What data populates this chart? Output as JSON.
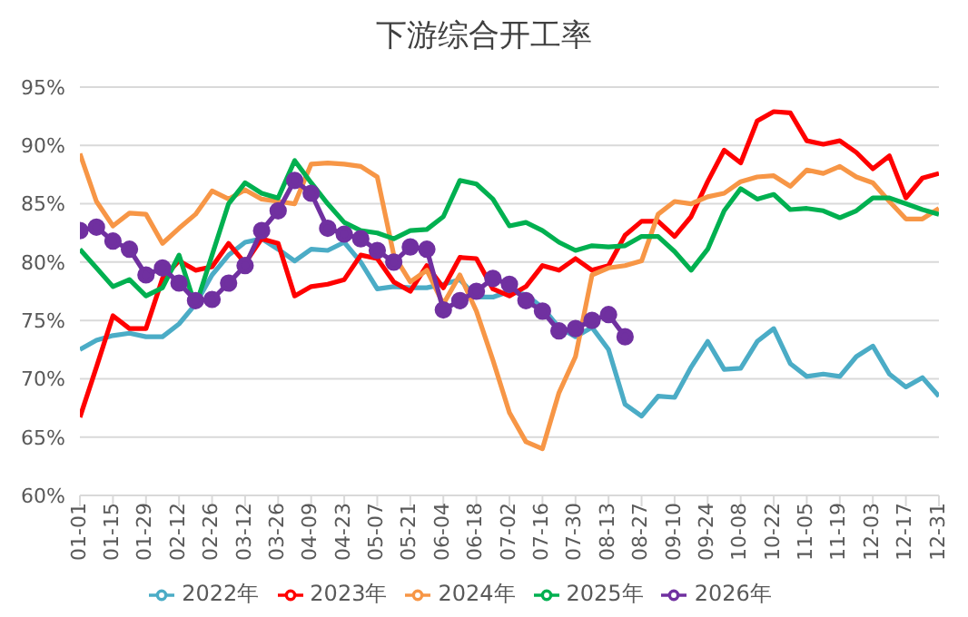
{
  "chart_data": {
    "type": "line",
    "title": "下游综合开工率",
    "x": [
      "--01-01",
      "--01-08",
      "--01-15",
      "--01-22",
      "--01-29",
      "--02-05",
      "--02-12",
      "--02-19",
      "--02-26",
      "--03-05",
      "--03-12",
      "--03-19",
      "--03-26",
      "--04-02",
      "--04-09",
      "--04-16",
      "--04-23",
      "--04-30",
      "--05-07",
      "--05-14",
      "--05-21",
      "--05-28",
      "--06-04",
      "--06-11",
      "--06-18",
      "--06-25",
      "--07-02",
      "--07-09",
      "--07-16",
      "--07-23",
      "--07-30",
      "--08-06",
      "--08-13",
      "--08-20",
      "--08-27",
      "--09-03",
      "--09-10",
      "--09-17",
      "--09-24",
      "--10-01",
      "--10-08",
      "--10-15",
      "--10-22",
      "--10-29",
      "--11-05",
      "--11-12",
      "--11-19",
      "--11-26",
      "--12-03",
      "--12-10",
      "--12-17",
      "--12-24",
      "--12-31"
    ],
    "series": [
      {
        "name": "2022年",
        "color": "#4bacc6",
        "marker": "none",
        "values": [
          72.5,
          73.3,
          73.7,
          73.9,
          73.6,
          73.6,
          74.7,
          76.4,
          78.9,
          80.6,
          81.7,
          82.0,
          81.1,
          80.1,
          81.1,
          81.0,
          81.7,
          80.0,
          77.7,
          77.9,
          77.8,
          77.8,
          78.1,
          78.5,
          77.0,
          77.0,
          77.5,
          77.2,
          76.1,
          74.4,
          73.6,
          74.4,
          72.5,
          67.8,
          66.8,
          68.5,
          68.4,
          71.0,
          73.2,
          70.8,
          70.9,
          73.2,
          74.3,
          71.3,
          70.2,
          70.4,
          70.2,
          71.9,
          72.8,
          70.4,
          69.3,
          70.1,
          68.5
        ]
      },
      {
        "name": "2023年",
        "color": "#ff0000",
        "marker": "none",
        "values": [
          66.7,
          71.0,
          75.4,
          74.3,
          74.3,
          78.6,
          80.1,
          79.3,
          79.6,
          81.6,
          79.9,
          82.0,
          81.6,
          77.1,
          77.9,
          78.1,
          78.5,
          80.6,
          80.3,
          78.3,
          77.5,
          79.7,
          77.8,
          80.4,
          80.3,
          77.7,
          77.1,
          77.9,
          79.7,
          79.3,
          80.3,
          79.3,
          79.7,
          82.3,
          83.5,
          83.5,
          82.2,
          83.9,
          86.9,
          89.6,
          88.5,
          92.1,
          92.9,
          92.8,
          90.4,
          90.1,
          90.4,
          89.4,
          88.0,
          89.1,
          85.5,
          87.2,
          87.6
        ]
      },
      {
        "name": "2024年",
        "color": "#f79646",
        "marker": "none",
        "values": [
          89.3,
          85.2,
          83.1,
          84.2,
          84.1,
          81.6,
          82.9,
          84.1,
          86.1,
          85.4,
          86.2,
          85.4,
          85.2,
          85.0,
          88.4,
          88.5,
          88.4,
          88.2,
          87.3,
          80.6,
          78.3,
          79.3,
          76.4,
          78.9,
          75.8,
          71.6,
          67.1,
          64.6,
          64.0,
          68.8,
          71.9,
          78.9,
          79.5,
          79.7,
          80.1,
          84.1,
          85.2,
          85.0,
          85.6,
          85.9,
          86.9,
          87.3,
          87.4,
          86.5,
          87.9,
          87.6,
          88.2,
          87.3,
          86.8,
          85.2,
          83.7,
          83.7,
          84.6
        ]
      },
      {
        "name": "2025年",
        "color": "#00b050",
        "marker": "none",
        "values": [
          81.1,
          79.5,
          77.9,
          78.5,
          77.1,
          77.8,
          80.6,
          76.2,
          80.6,
          85.0,
          86.8,
          85.9,
          85.5,
          88.7,
          86.8,
          85.0,
          83.4,
          82.7,
          82.5,
          82.0,
          82.7,
          82.8,
          83.9,
          87.0,
          86.7,
          85.4,
          83.1,
          83.4,
          82.7,
          81.7,
          81.0,
          81.4,
          81.3,
          81.4,
          82.2,
          82.2,
          80.9,
          79.3,
          81.1,
          84.4,
          86.3,
          85.4,
          85.8,
          84.5,
          84.6,
          84.4,
          83.8,
          84.4,
          85.5,
          85.5,
          85.0,
          84.5,
          84.1
        ]
      },
      {
        "name": "2026年",
        "color": "#7030a0",
        "marker": "circle",
        "values": [
          82.7,
          83.0,
          81.8,
          81.1,
          78.9,
          79.5,
          78.2,
          76.7,
          76.8,
          78.2,
          79.7,
          82.7,
          84.4,
          87.0,
          85.9,
          82.9,
          82.4,
          82.0,
          81.0,
          80.0,
          81.3,
          81.1,
          75.9,
          76.7,
          77.5,
          78.6,
          78.1,
          76.7,
          75.8,
          74.1,
          74.3,
          75.0,
          75.5,
          73.6,
          null,
          null,
          null,
          null,
          null,
          null,
          null,
          null,
          null,
          null,
          null,
          null,
          null,
          null,
          null,
          null,
          null,
          null,
          null
        ]
      }
    ],
    "xlim": [
      "--01-01",
      "--12-31"
    ],
    "xticks": [
      {
        "value": "--01-01",
        "label": "01-01"
      },
      {
        "value": "--01-15",
        "label": "01-15"
      },
      {
        "value": "--01-29",
        "label": "01-29"
      },
      {
        "value": "--02-12",
        "label": "02-12"
      },
      {
        "value": "--02-26",
        "label": "02-26"
      },
      {
        "value": "--03-12",
        "label": "03-12"
      },
      {
        "value": "--03-26",
        "label": "03-26"
      },
      {
        "value": "--04-09",
        "label": "04-09"
      },
      {
        "value": "--04-23",
        "label": "04-23"
      },
      {
        "value": "--05-07",
        "label": "05-07"
      },
      {
        "value": "--05-21",
        "label": "05-21"
      },
      {
        "value": "--06-04",
        "label": "06-04"
      },
      {
        "value": "--06-18",
        "label": "06-18"
      },
      {
        "value": "--07-02",
        "label": "07-02"
      },
      {
        "value": "--07-16",
        "label": "07-16"
      },
      {
        "value": "--07-30",
        "label": "07-30"
      },
      {
        "value": "--08-13",
        "label": "08-13"
      },
      {
        "value": "--08-27",
        "label": "08-27"
      },
      {
        "value": "--09-10",
        "label": "09-10"
      },
      {
        "value": "--09-24",
        "label": "09-24"
      },
      {
        "value": "--10-08",
        "label": "10-08"
      },
      {
        "value": "--10-22",
        "label": "10-22"
      },
      {
        "value": "--11-05",
        "label": "11-05"
      },
      {
        "value": "--11-19",
        "label": "11-19"
      },
      {
        "value": "--12-03",
        "label": "12-03"
      },
      {
        "value": "--12-17",
        "label": "12-17"
      },
      {
        "value": "--12-31",
        "label": "12-31"
      }
    ],
    "ylim": [
      60,
      95
    ],
    "yticks": [
      {
        "value": 60,
        "label": "60%"
      },
      {
        "value": 65,
        "label": "65%"
      },
      {
        "value": 70,
        "label": "70%"
      },
      {
        "value": 75,
        "label": "75%"
      },
      {
        "value": 80,
        "label": "80%"
      },
      {
        "value": 85,
        "label": "85%"
      },
      {
        "value": 90,
        "label": "90%"
      },
      {
        "value": 95,
        "label": "95%"
      }
    ],
    "grid": "y",
    "legend": "bottom",
    "line_style": "solid"
  }
}
